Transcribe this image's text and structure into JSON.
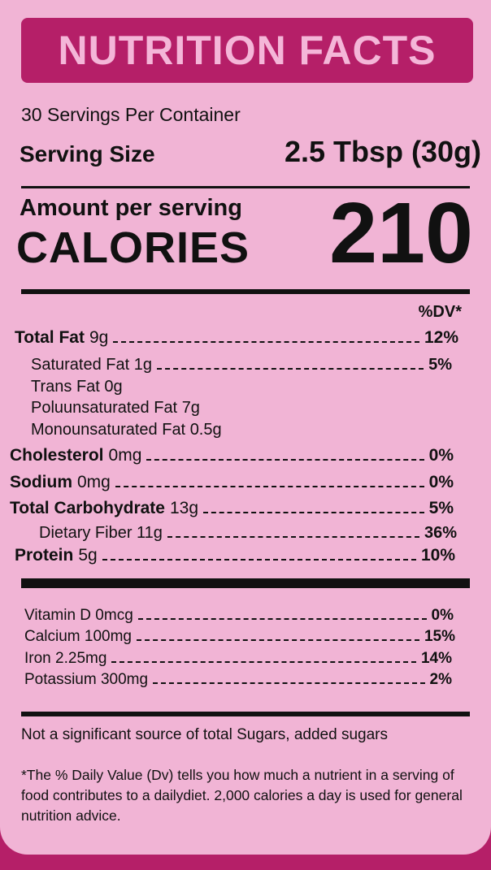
{
  "header": {
    "title": "NUTRITION FACTS"
  },
  "servings": "30 Servings Per Container",
  "serving_size": {
    "label": "Serving Size",
    "value": "2.5 Tbsp (30g)"
  },
  "calories": {
    "amount_label": "Amount per serving",
    "label": "CALORIES",
    "value": "210"
  },
  "dv_header": "%DV*",
  "nutrients": [
    {
      "name": "Total Fat",
      "amount": "9g",
      "dv": "12%"
    },
    {
      "name": "Saturated Fat",
      "amount": "1g",
      "dv": "5%"
    },
    {
      "name": "Trans Fat",
      "amount": "0g"
    },
    {
      "name": "Poluunsaturated Fat",
      "amount": "7g"
    },
    {
      "name": "Monounsaturated Fat",
      "amount": "0.5g"
    },
    {
      "name": "Cholesterol",
      "amount": "0mg",
      "dv": "0%"
    },
    {
      "name": "Sodium",
      "amount": "0mg",
      "dv": "0%"
    },
    {
      "name": "Total Carbohydrate",
      "amount": "13g",
      "dv": "5%"
    },
    {
      "name": "Dietary Fiber",
      "amount": "11g",
      "dv": "36%"
    },
    {
      "name": "Protein",
      "amount": "5g",
      "dv": "10%"
    }
  ],
  "vitamins": [
    {
      "name": "Vitamin D",
      "amount": "0mcg",
      "dv": "0%"
    },
    {
      "name": "Calcium",
      "amount": "100mg",
      "dv": "15%"
    },
    {
      "name": "Iron",
      "amount": "2.25mg",
      "dv": "14%"
    },
    {
      "name": "Potassium",
      "amount": "300mg",
      "dv": "2%"
    }
  ],
  "note": "Not a significant source of total Sugars, added sugars",
  "footnote": "*The % Daily Value (Dv) tells you how much a nutrient in a serving of food contributes to a dailydiet. 2,000 calories a day is used for general nutrition advice."
}
